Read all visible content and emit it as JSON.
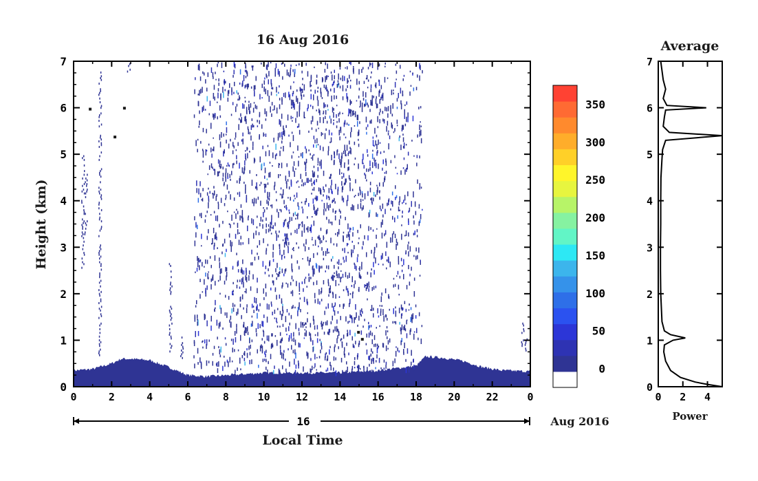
{
  "chart_data": [
    {
      "type": "heatmap",
      "title": "16 Aug 2016",
      "xlabel": "Local Time",
      "ylabel": "Height (km)",
      "xlim": [
        0,
        24
      ],
      "ylim": [
        0,
        7
      ],
      "x_ticks": [
        "0",
        "2",
        "4",
        "6",
        "8",
        "10",
        "12",
        "14",
        "16",
        "18",
        "20",
        "22",
        "0"
      ],
      "y_ticks": [
        "0",
        "1",
        "2",
        "3",
        "4",
        "5",
        "6",
        "7"
      ],
      "day_label": "16",
      "date_suffix": "Aug 2016",
      "colorbar": {
        "min": -25,
        "max": 375,
        "tick_labels": [
          "0",
          "50",
          "100",
          "150",
          "200",
          "250",
          "300",
          "350"
        ],
        "tick_values": [
          0,
          50,
          100,
          150,
          200,
          250,
          300,
          350
        ],
        "colors": [
          "#ffffff",
          "#2f3494",
          "#2e33b3",
          "#2c36d7",
          "#2b52f0",
          "#2e6fe8",
          "#3592ea",
          "#3cb5ec",
          "#2de8f4",
          "#62f5c6",
          "#86f2a1",
          "#b7f468",
          "#e7f53f",
          "#fff52a",
          "#ffd028",
          "#ffad2a",
          "#ff8a2d",
          "#ff6a33",
          "#ff4233"
        ]
      },
      "surface_layer_top_km": [
        [
          0,
          0.35
        ],
        [
          1,
          0.38
        ],
        [
          2,
          0.5
        ],
        [
          2.5,
          0.6
        ],
        [
          3,
          0.6
        ],
        [
          4,
          0.57
        ],
        [
          5,
          0.42
        ],
        [
          6,
          0.25
        ],
        [
          7,
          0.22
        ],
        [
          10,
          0.3
        ],
        [
          14,
          0.3
        ],
        [
          16,
          0.35
        ],
        [
          18,
          0.45
        ],
        [
          18.5,
          0.65
        ],
        [
          19.5,
          0.62
        ],
        [
          20.5,
          0.55
        ],
        [
          21.5,
          0.42
        ],
        [
          22.5,
          0.35
        ],
        [
          24,
          0.33
        ]
      ],
      "noise_band_hours": [
        6.3,
        18.3
      ]
    },
    {
      "type": "line",
      "title": "Average",
      "xlabel": "Power",
      "xlim": [
        0,
        5.2
      ],
      "ylim": [
        0,
        7
      ],
      "x_ticks": [
        "0",
        "2",
        "4"
      ],
      "x_tick_values": [
        0,
        2,
        4
      ],
      "y_ticks": [
        "0",
        "1",
        "2",
        "3",
        "4",
        "5",
        "6",
        "7"
      ],
      "series": [
        {
          "values": [
            [
              5.2,
              0.0
            ],
            [
              4.0,
              0.05
            ],
            [
              3.0,
              0.1
            ],
            [
              1.8,
              0.2
            ],
            [
              1.0,
              0.35
            ],
            [
              0.6,
              0.55
            ],
            [
              0.45,
              0.75
            ],
            [
              0.5,
              0.9
            ],
            [
              1.2,
              1.0
            ],
            [
              2.2,
              1.05
            ],
            [
              1.0,
              1.12
            ],
            [
              0.5,
              1.2
            ],
            [
              0.3,
              1.4
            ],
            [
              0.25,
              1.7
            ],
            [
              0.2,
              2.0
            ],
            [
              0.18,
              2.5
            ],
            [
              0.18,
              3.0
            ],
            [
              0.2,
              3.5
            ],
            [
              0.2,
              4.0
            ],
            [
              0.22,
              4.5
            ],
            [
              0.3,
              4.9
            ],
            [
              0.35,
              5.1
            ],
            [
              0.6,
              5.3
            ],
            [
              5.2,
              5.4
            ],
            [
              0.9,
              5.47
            ],
            [
              0.4,
              5.6
            ],
            [
              0.5,
              5.8
            ],
            [
              0.6,
              5.95
            ],
            [
              3.9,
              6.0
            ],
            [
              0.7,
              6.05
            ],
            [
              0.4,
              6.2
            ],
            [
              0.6,
              6.4
            ],
            [
              0.4,
              6.6
            ],
            [
              0.3,
              6.8
            ],
            [
              0.2,
              7.0
            ]
          ]
        }
      ]
    }
  ]
}
